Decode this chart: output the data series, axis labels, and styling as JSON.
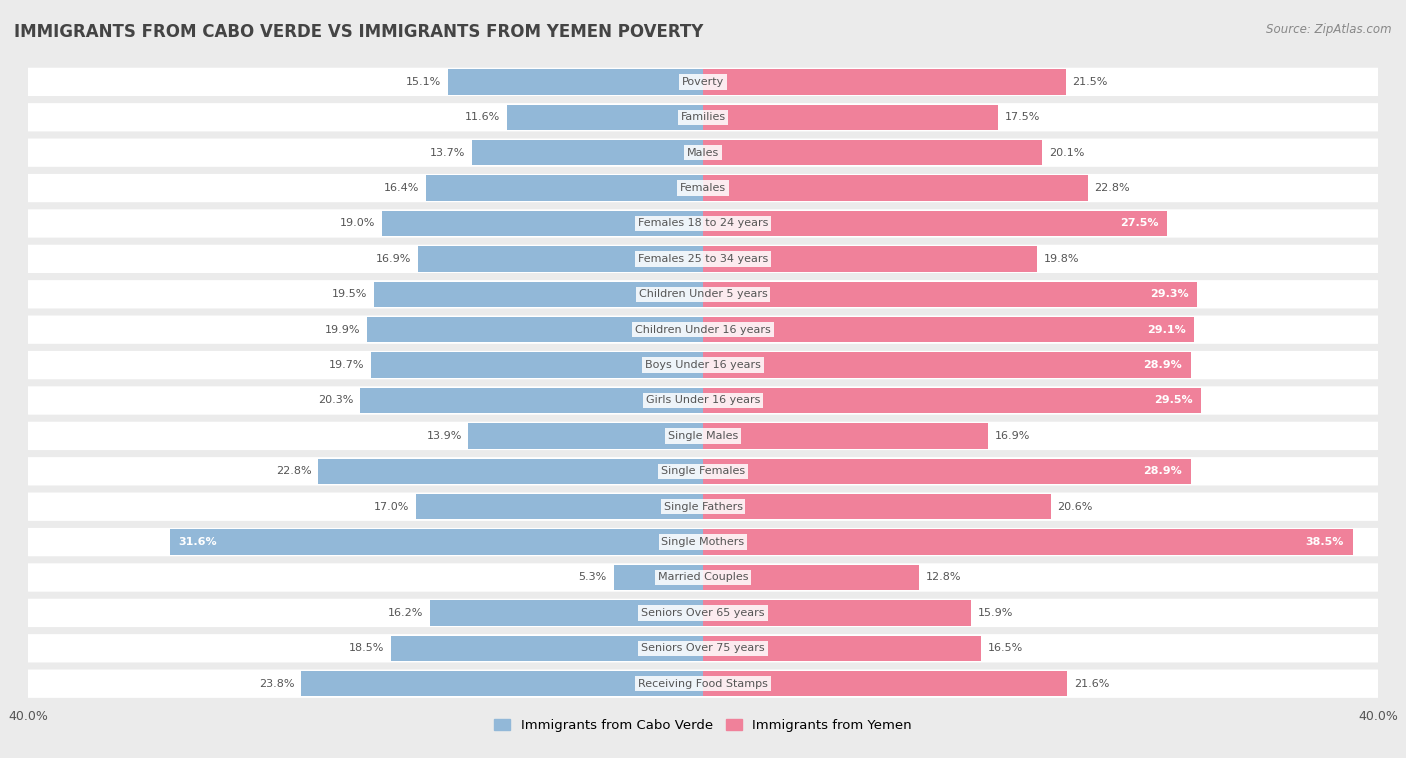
{
  "title": "IMMIGRANTS FROM CABO VERDE VS IMMIGRANTS FROM YEMEN POVERTY",
  "source": "Source: ZipAtlas.com",
  "categories": [
    "Poverty",
    "Families",
    "Males",
    "Females",
    "Females 18 to 24 years",
    "Females 25 to 34 years",
    "Children Under 5 years",
    "Children Under 16 years",
    "Boys Under 16 years",
    "Girls Under 16 years",
    "Single Males",
    "Single Females",
    "Single Fathers",
    "Single Mothers",
    "Married Couples",
    "Seniors Over 65 years",
    "Seniors Over 75 years",
    "Receiving Food Stamps"
  ],
  "cabo_verde": [
    15.1,
    11.6,
    13.7,
    16.4,
    19.0,
    16.9,
    19.5,
    19.9,
    19.7,
    20.3,
    13.9,
    22.8,
    17.0,
    31.6,
    5.3,
    16.2,
    18.5,
    23.8
  ],
  "yemen": [
    21.5,
    17.5,
    20.1,
    22.8,
    27.5,
    19.8,
    29.3,
    29.1,
    28.9,
    29.5,
    16.9,
    28.9,
    20.6,
    38.5,
    12.8,
    15.9,
    16.5,
    21.6
  ],
  "cabo_verde_color": "#92b8d8",
  "yemen_color": "#f0819a",
  "background_color": "#ebebeb",
  "bar_background": "#ffffff",
  "xlim": 40.0,
  "legend_label_cabo": "Immigrants from Cabo Verde",
  "legend_label_yemen": "Immigrants from Yemen"
}
